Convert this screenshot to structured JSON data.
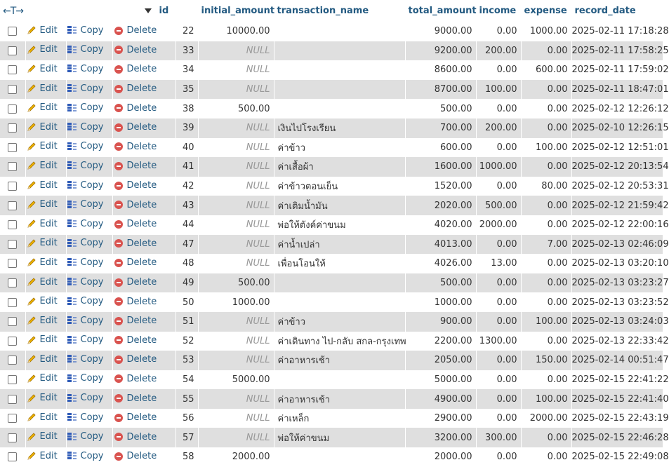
{
  "header": {
    "arrows": "←T→",
    "columns": [
      "id",
      "initial_amount",
      "transaction_name",
      "total_amount",
      "income",
      "expense",
      "record_date"
    ]
  },
  "actions": {
    "edit": "Edit",
    "copy": "Copy",
    "delete": "Delete"
  },
  "rows": [
    {
      "id": "22",
      "initial_amount": "10000.00",
      "transaction_name": "",
      "total_amount": "9000.00",
      "income": "0.00",
      "expense": "1000.00",
      "record_date": "2025-02-11 17:18:28"
    },
    {
      "id": "33",
      "initial_amount": "NULL",
      "transaction_name": "",
      "total_amount": "9200.00",
      "income": "200.00",
      "expense": "0.00",
      "record_date": "2025-02-11 17:58:25"
    },
    {
      "id": "34",
      "initial_amount": "NULL",
      "transaction_name": "",
      "total_amount": "8600.00",
      "income": "0.00",
      "expense": "600.00",
      "record_date": "2025-02-11 17:59:02"
    },
    {
      "id": "35",
      "initial_amount": "NULL",
      "transaction_name": "",
      "total_amount": "8700.00",
      "income": "100.00",
      "expense": "0.00",
      "record_date": "2025-02-11 18:47:01"
    },
    {
      "id": "38",
      "initial_amount": "500.00",
      "transaction_name": "",
      "total_amount": "500.00",
      "income": "0.00",
      "expense": "0.00",
      "record_date": "2025-02-12 12:26:12"
    },
    {
      "id": "39",
      "initial_amount": "NULL",
      "transaction_name": "เงินไปโรงเรียน",
      "total_amount": "700.00",
      "income": "200.00",
      "expense": "0.00",
      "record_date": "2025-02-10 12:26:15"
    },
    {
      "id": "40",
      "initial_amount": "NULL",
      "transaction_name": "ค่าข้าว",
      "total_amount": "600.00",
      "income": "0.00",
      "expense": "100.00",
      "record_date": "2025-02-12 12:51:01"
    },
    {
      "id": "41",
      "initial_amount": "NULL",
      "transaction_name": "ค่าเสื้อผ้า",
      "total_amount": "1600.00",
      "income": "1000.00",
      "expense": "0.00",
      "record_date": "2025-02-12 20:13:54"
    },
    {
      "id": "42",
      "initial_amount": "NULL",
      "transaction_name": "ค่าข้าวตอนเย็น",
      "total_amount": "1520.00",
      "income": "0.00",
      "expense": "80.00",
      "record_date": "2025-02-12 20:53:31"
    },
    {
      "id": "43",
      "initial_amount": "NULL",
      "transaction_name": "ค่าเติมน้ำมัน",
      "total_amount": "2020.00",
      "income": "500.00",
      "expense": "0.00",
      "record_date": "2025-02-12 21:59:42"
    },
    {
      "id": "44",
      "initial_amount": "NULL",
      "transaction_name": "พ่อให้ตังค์ค่าขนม",
      "total_amount": "4020.00",
      "income": "2000.00",
      "expense": "0.00",
      "record_date": "2025-02-12 22:00:16"
    },
    {
      "id": "47",
      "initial_amount": "NULL",
      "transaction_name": "ค่าน้ำเปล่า",
      "total_amount": "4013.00",
      "income": "0.00",
      "expense": "7.00",
      "record_date": "2025-02-13 02:46:09"
    },
    {
      "id": "48",
      "initial_amount": "NULL",
      "transaction_name": "เพื่อนโอนให้",
      "total_amount": "4026.00",
      "income": "13.00",
      "expense": "0.00",
      "record_date": "2025-02-13 03:20:10"
    },
    {
      "id": "49",
      "initial_amount": "500.00",
      "transaction_name": "",
      "total_amount": "500.00",
      "income": "0.00",
      "expense": "0.00",
      "record_date": "2025-02-13 03:23:27"
    },
    {
      "id": "50",
      "initial_amount": "1000.00",
      "transaction_name": "",
      "total_amount": "1000.00",
      "income": "0.00",
      "expense": "0.00",
      "record_date": "2025-02-13 03:23:52"
    },
    {
      "id": "51",
      "initial_amount": "NULL",
      "transaction_name": "ค่าข้าว",
      "total_amount": "900.00",
      "income": "0.00",
      "expense": "100.00",
      "record_date": "2025-02-13 03:24:03"
    },
    {
      "id": "52",
      "initial_amount": "NULL",
      "transaction_name": "ค่าเดินทาง ไป-กลับ สกล-กรุงเทพ",
      "total_amount": "2200.00",
      "income": "1300.00",
      "expense": "0.00",
      "record_date": "2025-02-13 22:33:42"
    },
    {
      "id": "53",
      "initial_amount": "NULL",
      "transaction_name": "ค่าอาหารเช้า",
      "total_amount": "2050.00",
      "income": "0.00",
      "expense": "150.00",
      "record_date": "2025-02-14 00:51:47"
    },
    {
      "id": "54",
      "initial_amount": "5000.00",
      "transaction_name": "",
      "total_amount": "5000.00",
      "income": "0.00",
      "expense": "0.00",
      "record_date": "2025-02-15 22:41:22"
    },
    {
      "id": "55",
      "initial_amount": "NULL",
      "transaction_name": "ค่าอาหารเช้า",
      "total_amount": "4900.00",
      "income": "0.00",
      "expense": "100.00",
      "record_date": "2025-02-15 22:41:40"
    },
    {
      "id": "56",
      "initial_amount": "NULL",
      "transaction_name": "ค่าเหล็ก",
      "total_amount": "2900.00",
      "income": "0.00",
      "expense": "2000.00",
      "record_date": "2025-02-15 22:43:19"
    },
    {
      "id": "57",
      "initial_amount": "NULL",
      "transaction_name": "พ่อให้ค่าขนม",
      "total_amount": "3200.00",
      "income": "300.00",
      "expense": "0.00",
      "record_date": "2025-02-15 22:46:28"
    },
    {
      "id": "58",
      "initial_amount": "2000.00",
      "transaction_name": "",
      "total_amount": "2000.00",
      "income": "0.00",
      "expense": "0.00",
      "record_date": "2025-02-15 22:49:08"
    }
  ]
}
